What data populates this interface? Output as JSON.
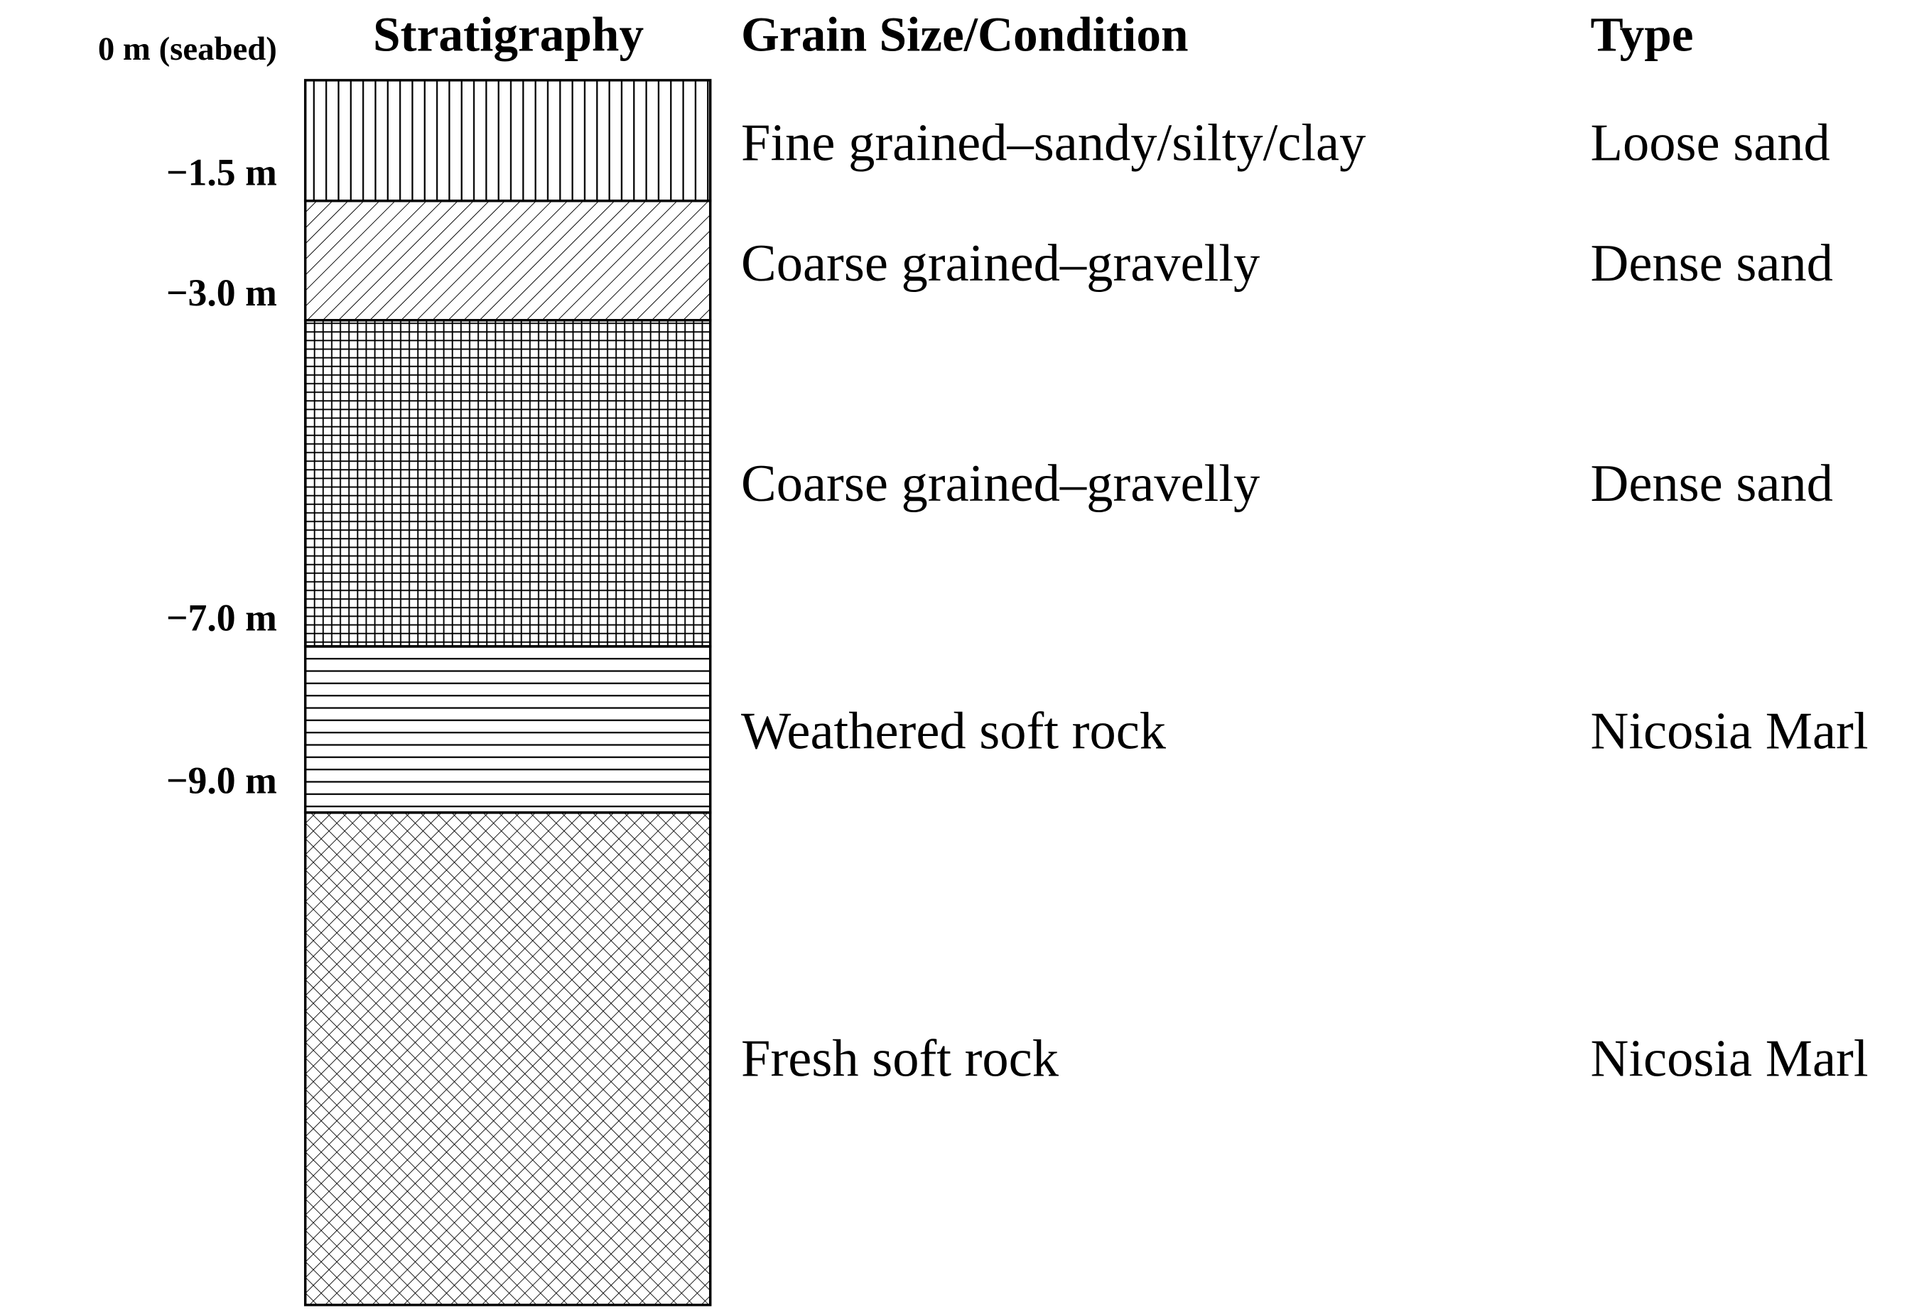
{
  "header": {
    "stratigraphy": "Stratigraphy",
    "grain_size": "Grain Size/Condition",
    "type": "Type"
  },
  "depths": [
    "0 m (seabed)",
    "−1.5 m",
    "−3.0 m",
    "−7.0 m",
    "−9.0 m"
  ],
  "layers": [
    {
      "description": "Fine grained–sandy/silty/clay",
      "type": "Loose sand"
    },
    {
      "description": "Coarse grained–gravelly",
      "type": "Dense sand"
    },
    {
      "description": "Coarse grained–gravelly",
      "type": "Dense sand"
    },
    {
      "description": "Weathered soft rock",
      "type": "Nicosia Marl"
    },
    {
      "description": "Fresh soft rock",
      "type": "Nicosia Marl"
    }
  ]
}
